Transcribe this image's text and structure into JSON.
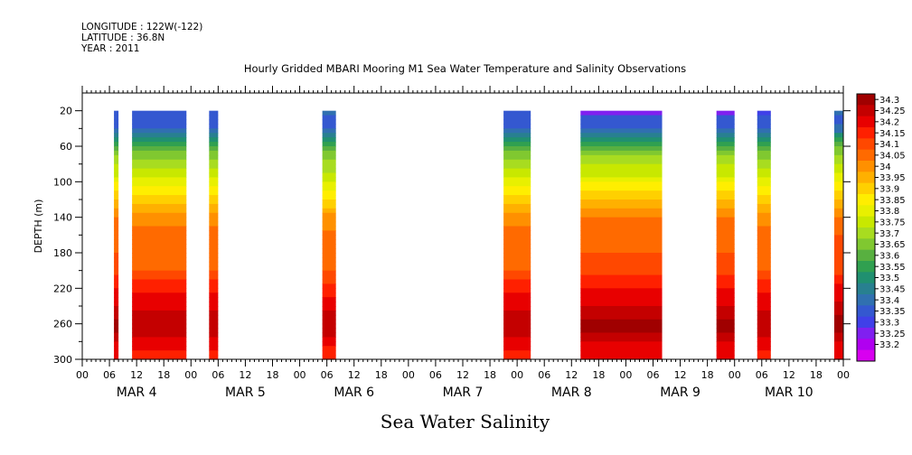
{
  "header": {
    "longitude": "LONGITUDE : 122W(-122)",
    "latitude": "LATITUDE : 36.8N",
    "year": "YEAR : 2011"
  },
  "title": "Hourly Gridded MBARI Mooring M1 Sea Water Temperature and Salinity Observations",
  "bottom_title": "Sea Water Salinity",
  "chart_data": {
    "type": "heatmap",
    "title": "Hourly Gridded MBARI Mooring M1 Sea Water Temperature and Salinity Observations",
    "xlabel": "",
    "ylabel": "DEPTH (m)",
    "x_unit": "hours from MAR 4 00",
    "xlim": [
      0,
      168
    ],
    "ylim": [
      300,
      0
    ],
    "y_ticks": [
      20,
      60,
      100,
      140,
      180,
      220,
      260,
      300
    ],
    "x_tick_labels": [
      "00",
      "06",
      "12",
      "18",
      "00",
      "06",
      "12",
      "18",
      "00",
      "06",
      "12",
      "18",
      "00",
      "06",
      "12",
      "18",
      "00",
      "06",
      "12",
      "18",
      "00",
      "06",
      "12",
      "18",
      "00",
      "06",
      "12",
      "18",
      "00"
    ],
    "day_labels": [
      "MAR  4",
      "MAR  5",
      "MAR  6",
      "MAR  7",
      "MAR  8",
      "MAR  9",
      "MAR 10"
    ],
    "colorbar_levels": [
      34.3,
      34.25,
      34.2,
      34.15,
      34.1,
      34.05,
      34,
      33.95,
      33.9,
      33.85,
      33.8,
      33.75,
      33.7,
      33.65,
      33.6,
      33.55,
      33.5,
      33.45,
      33.4,
      33.35,
      33.3,
      33.25,
      33.2
    ],
    "colorbar_colors": [
      "#a00000",
      "#c40000",
      "#e80000",
      "#ff2000",
      "#ff4800",
      "#ff6a00",
      "#ff9000",
      "#ffb000",
      "#ffd000",
      "#ffee00",
      "#e8f000",
      "#c8e800",
      "#a8dc20",
      "#80c830",
      "#58b040",
      "#30a050",
      "#209070",
      "#288090",
      "#3070b0",
      "#3458d0",
      "#4040e8",
      "#8020f0",
      "#b000f0",
      "#d800f0"
    ],
    "observation_columns": [
      {
        "start": 7.0,
        "end": 8.0,
        "profile": "thin"
      },
      {
        "start": 11.0,
        "end": 23.0,
        "profile": "a"
      },
      {
        "start": 28.0,
        "end": 30.0,
        "profile": "b"
      },
      {
        "start": 53.0,
        "end": 56.0,
        "profile": "c"
      },
      {
        "start": 93.0,
        "end": 99.0,
        "profile": "d"
      },
      {
        "start": 110.0,
        "end": 128.0,
        "profile": "e"
      },
      {
        "start": 140.0,
        "end": 144.0,
        "profile": "f"
      },
      {
        "start": 149.0,
        "end": 152.0,
        "profile": "g"
      },
      {
        "start": 166.0,
        "end": 168.0,
        "profile": "h"
      }
    ]
  }
}
